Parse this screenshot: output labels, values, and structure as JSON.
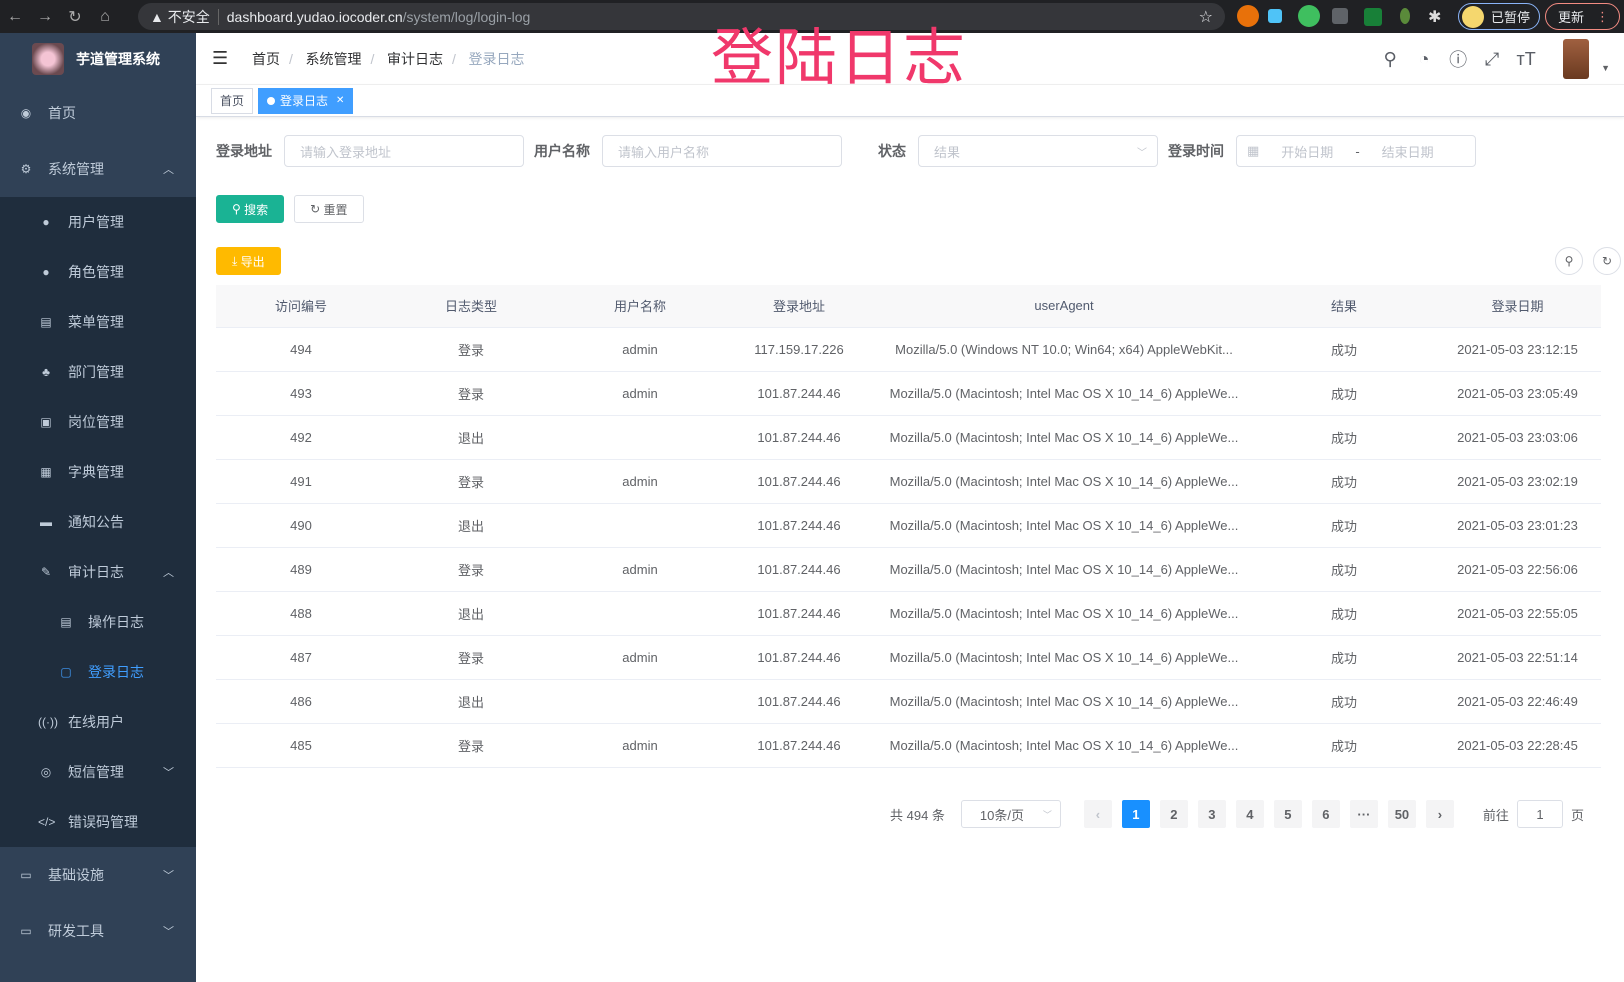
{
  "browser": {
    "security": "不安全",
    "url_host": "dashboard.yudao.iocoder.cn",
    "url_path": "/system/log/login-log",
    "paused": "已暂停",
    "update": "更新"
  },
  "overlay_title": "登陆日志",
  "sidebar": {
    "title": "芋道管理系统",
    "items": [
      {
        "label": "首页",
        "icon": "dashboard-icon"
      },
      {
        "label": "系统管理",
        "icon": "gear-icon"
      },
      {
        "label": "用户管理",
        "icon": "user-icon"
      },
      {
        "label": "角色管理",
        "icon": "peoples-icon"
      },
      {
        "label": "菜单管理",
        "icon": "tree-table-icon"
      },
      {
        "label": "部门管理",
        "icon": "tree-icon"
      },
      {
        "label": "岗位管理",
        "icon": "post-icon"
      },
      {
        "label": "字典管理",
        "icon": "dict-icon"
      },
      {
        "label": "通知公告",
        "icon": "message-icon"
      },
      {
        "label": "审计日志",
        "icon": "log-icon"
      },
      {
        "label": "操作日志",
        "icon": "form-icon"
      },
      {
        "label": "登录日志",
        "icon": "logininfor-icon"
      },
      {
        "label": "在线用户",
        "icon": "online-icon"
      },
      {
        "label": "短信管理",
        "icon": "validcode-icon"
      },
      {
        "label": "错误码管理",
        "icon": "code-icon"
      },
      {
        "label": "基础设施",
        "icon": "monitor-icon"
      },
      {
        "label": "研发工具",
        "icon": "tool-icon"
      }
    ]
  },
  "breadcrumb": [
    "首页",
    "系统管理",
    "审计日志",
    "登录日志"
  ],
  "tags": [
    "首页",
    "登录日志"
  ],
  "search": {
    "addr_label": "登录地址",
    "addr_placeholder": "请输入登录地址",
    "user_label": "用户名称",
    "user_placeholder": "请输入用户名称",
    "status_label": "状态",
    "status_placeholder": "结果",
    "time_label": "登录时间",
    "start_placeholder": "开始日期",
    "range_sep": "-",
    "end_placeholder": "结束日期",
    "search_btn": "搜索",
    "reset_btn": "重置",
    "export_btn": "导出"
  },
  "table": {
    "columns": [
      "访问编号",
      "日志类型",
      "用户名称",
      "登录地址",
      "userAgent",
      "结果",
      "登录日期"
    ],
    "rows": [
      [
        "494",
        "登录",
        "admin",
        "117.159.17.226",
        "Mozilla/5.0 (Windows NT 10.0; Win64; x64) AppleWebKit...",
        "成功",
        "2021-05-03 23:12:15"
      ],
      [
        "493",
        "登录",
        "admin",
        "101.87.244.46",
        "Mozilla/5.0 (Macintosh; Intel Mac OS X 10_14_6) AppleWe...",
        "成功",
        "2021-05-03 23:05:49"
      ],
      [
        "492",
        "退出",
        "",
        "101.87.244.46",
        "Mozilla/5.0 (Macintosh; Intel Mac OS X 10_14_6) AppleWe...",
        "成功",
        "2021-05-03 23:03:06"
      ],
      [
        "491",
        "登录",
        "admin",
        "101.87.244.46",
        "Mozilla/5.0 (Macintosh; Intel Mac OS X 10_14_6) AppleWe...",
        "成功",
        "2021-05-03 23:02:19"
      ],
      [
        "490",
        "退出",
        "",
        "101.87.244.46",
        "Mozilla/5.0 (Macintosh; Intel Mac OS X 10_14_6) AppleWe...",
        "成功",
        "2021-05-03 23:01:23"
      ],
      [
        "489",
        "登录",
        "admin",
        "101.87.244.46",
        "Mozilla/5.0 (Macintosh; Intel Mac OS X 10_14_6) AppleWe...",
        "成功",
        "2021-05-03 22:56:06"
      ],
      [
        "488",
        "退出",
        "",
        "101.87.244.46",
        "Mozilla/5.0 (Macintosh; Intel Mac OS X 10_14_6) AppleWe...",
        "成功",
        "2021-05-03 22:55:05"
      ],
      [
        "487",
        "登录",
        "admin",
        "101.87.244.46",
        "Mozilla/5.0 (Macintosh; Intel Mac OS X 10_14_6) AppleWe...",
        "成功",
        "2021-05-03 22:51:14"
      ],
      [
        "486",
        "退出",
        "",
        "101.87.244.46",
        "Mozilla/5.0 (Macintosh; Intel Mac OS X 10_14_6) AppleWe...",
        "成功",
        "2021-05-03 22:46:49"
      ],
      [
        "485",
        "登录",
        "admin",
        "101.87.244.46",
        "Mozilla/5.0 (Macintosh; Intel Mac OS X 10_14_6) AppleWe...",
        "成功",
        "2021-05-03 22:28:45"
      ]
    ]
  },
  "pagination": {
    "total": "共 494 条",
    "page_size": "10条/页",
    "pages": [
      "1",
      "2",
      "3",
      "4",
      "5",
      "6",
      "···",
      "50"
    ],
    "current": "1",
    "goto_label": "前往",
    "goto_value": "1",
    "page_suffix": "页"
  }
}
